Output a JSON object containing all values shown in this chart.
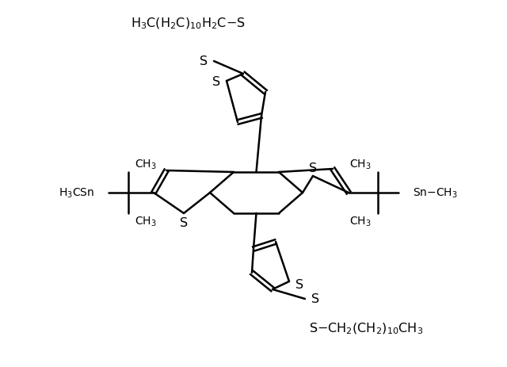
{
  "bg_color": "#ffffff",
  "line_color": "#000000",
  "lw": 1.8,
  "fs_main": 11.5,
  "fs_sub": 10,
  "top_label": "H$_3$C(H$_2$C)$_{10}$H$_2$C–S",
  "bottom_label": "S–CH$_2$(CH$_2$)$_{10}$CH$_3$",
  "left_ch3_top": "CH$_3$",
  "left_h3c_sn": "H$_3$CSn",
  "left_ch3_bot": "CH$_3$",
  "right_ch3_top": "CH$_3$",
  "right_sn_ch3": "Sn–CH$_3$",
  "right_ch3_bot": "CH$_3$"
}
